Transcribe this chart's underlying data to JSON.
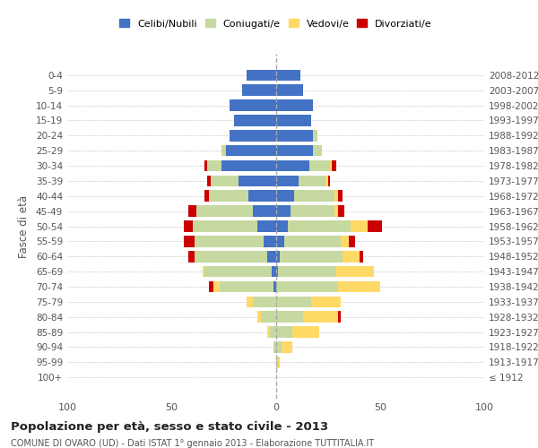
{
  "age_groups": [
    "100+",
    "95-99",
    "90-94",
    "85-89",
    "80-84",
    "75-79",
    "70-74",
    "65-69",
    "60-64",
    "55-59",
    "50-54",
    "45-49",
    "40-44",
    "35-39",
    "30-34",
    "25-29",
    "20-24",
    "15-19",
    "10-14",
    "5-9",
    "0-4"
  ],
  "birth_years": [
    "≤ 1912",
    "1913-1917",
    "1918-1922",
    "1923-1927",
    "1928-1932",
    "1933-1937",
    "1938-1942",
    "1943-1947",
    "1948-1952",
    "1953-1957",
    "1958-1962",
    "1963-1967",
    "1968-1972",
    "1973-1977",
    "1978-1982",
    "1983-1987",
    "1988-1992",
    "1993-1997",
    "1998-2002",
    "2003-2007",
    "2008-2012"
  ],
  "male": {
    "celibi": [
      0,
      0,
      0,
      0,
      0,
      0,
      1,
      2,
      4,
      6,
      9,
      11,
      13,
      18,
      26,
      24,
      22,
      20,
      22,
      16,
      14
    ],
    "coniugati": [
      0,
      0,
      1,
      3,
      7,
      11,
      26,
      32,
      35,
      33,
      31,
      27,
      19,
      13,
      7,
      2,
      0,
      0,
      0,
      0,
      0
    ],
    "vedovi": [
      0,
      0,
      0,
      1,
      2,
      3,
      3,
      1,
      0,
      0,
      0,
      0,
      0,
      0,
      0,
      0,
      0,
      0,
      0,
      0,
      0
    ],
    "divorziati": [
      0,
      0,
      0,
      0,
      0,
      0,
      2,
      0,
      3,
      5,
      4,
      4,
      2,
      2,
      1,
      0,
      0,
      0,
      0,
      0,
      0
    ]
  },
  "female": {
    "nubili": [
      0,
      0,
      0,
      0,
      0,
      0,
      0,
      1,
      2,
      4,
      6,
      7,
      9,
      11,
      16,
      18,
      18,
      17,
      18,
      13,
      12
    ],
    "coniugate": [
      0,
      1,
      3,
      8,
      13,
      17,
      30,
      28,
      30,
      27,
      30,
      21,
      19,
      13,
      10,
      4,
      2,
      0,
      0,
      0,
      0
    ],
    "vedove": [
      0,
      1,
      5,
      13,
      17,
      14,
      20,
      18,
      8,
      4,
      8,
      2,
      2,
      1,
      1,
      0,
      0,
      0,
      0,
      0,
      0
    ],
    "divorziate": [
      0,
      0,
      0,
      0,
      1,
      0,
      0,
      0,
      2,
      3,
      7,
      3,
      2,
      1,
      2,
      0,
      0,
      0,
      0,
      0,
      0
    ]
  },
  "colors": {
    "celibi": "#4472c4",
    "coniugati": "#c6d9a0",
    "vedovi": "#ffd966",
    "divorziati": "#cc0000"
  },
  "xlim": 100,
  "title": "Popolazione per età, sesso e stato civile - 2013",
  "subtitle": "COMUNE DI OVARO (UD) - Dati ISTAT 1° gennaio 2013 - Elaborazione TUTTITALIA.IT",
  "ylabel_left": "Fasce di età",
  "legend_labels": [
    "Celibi/Nubili",
    "Coniugati/e",
    "Vedovi/e",
    "Divorziati/e"
  ]
}
